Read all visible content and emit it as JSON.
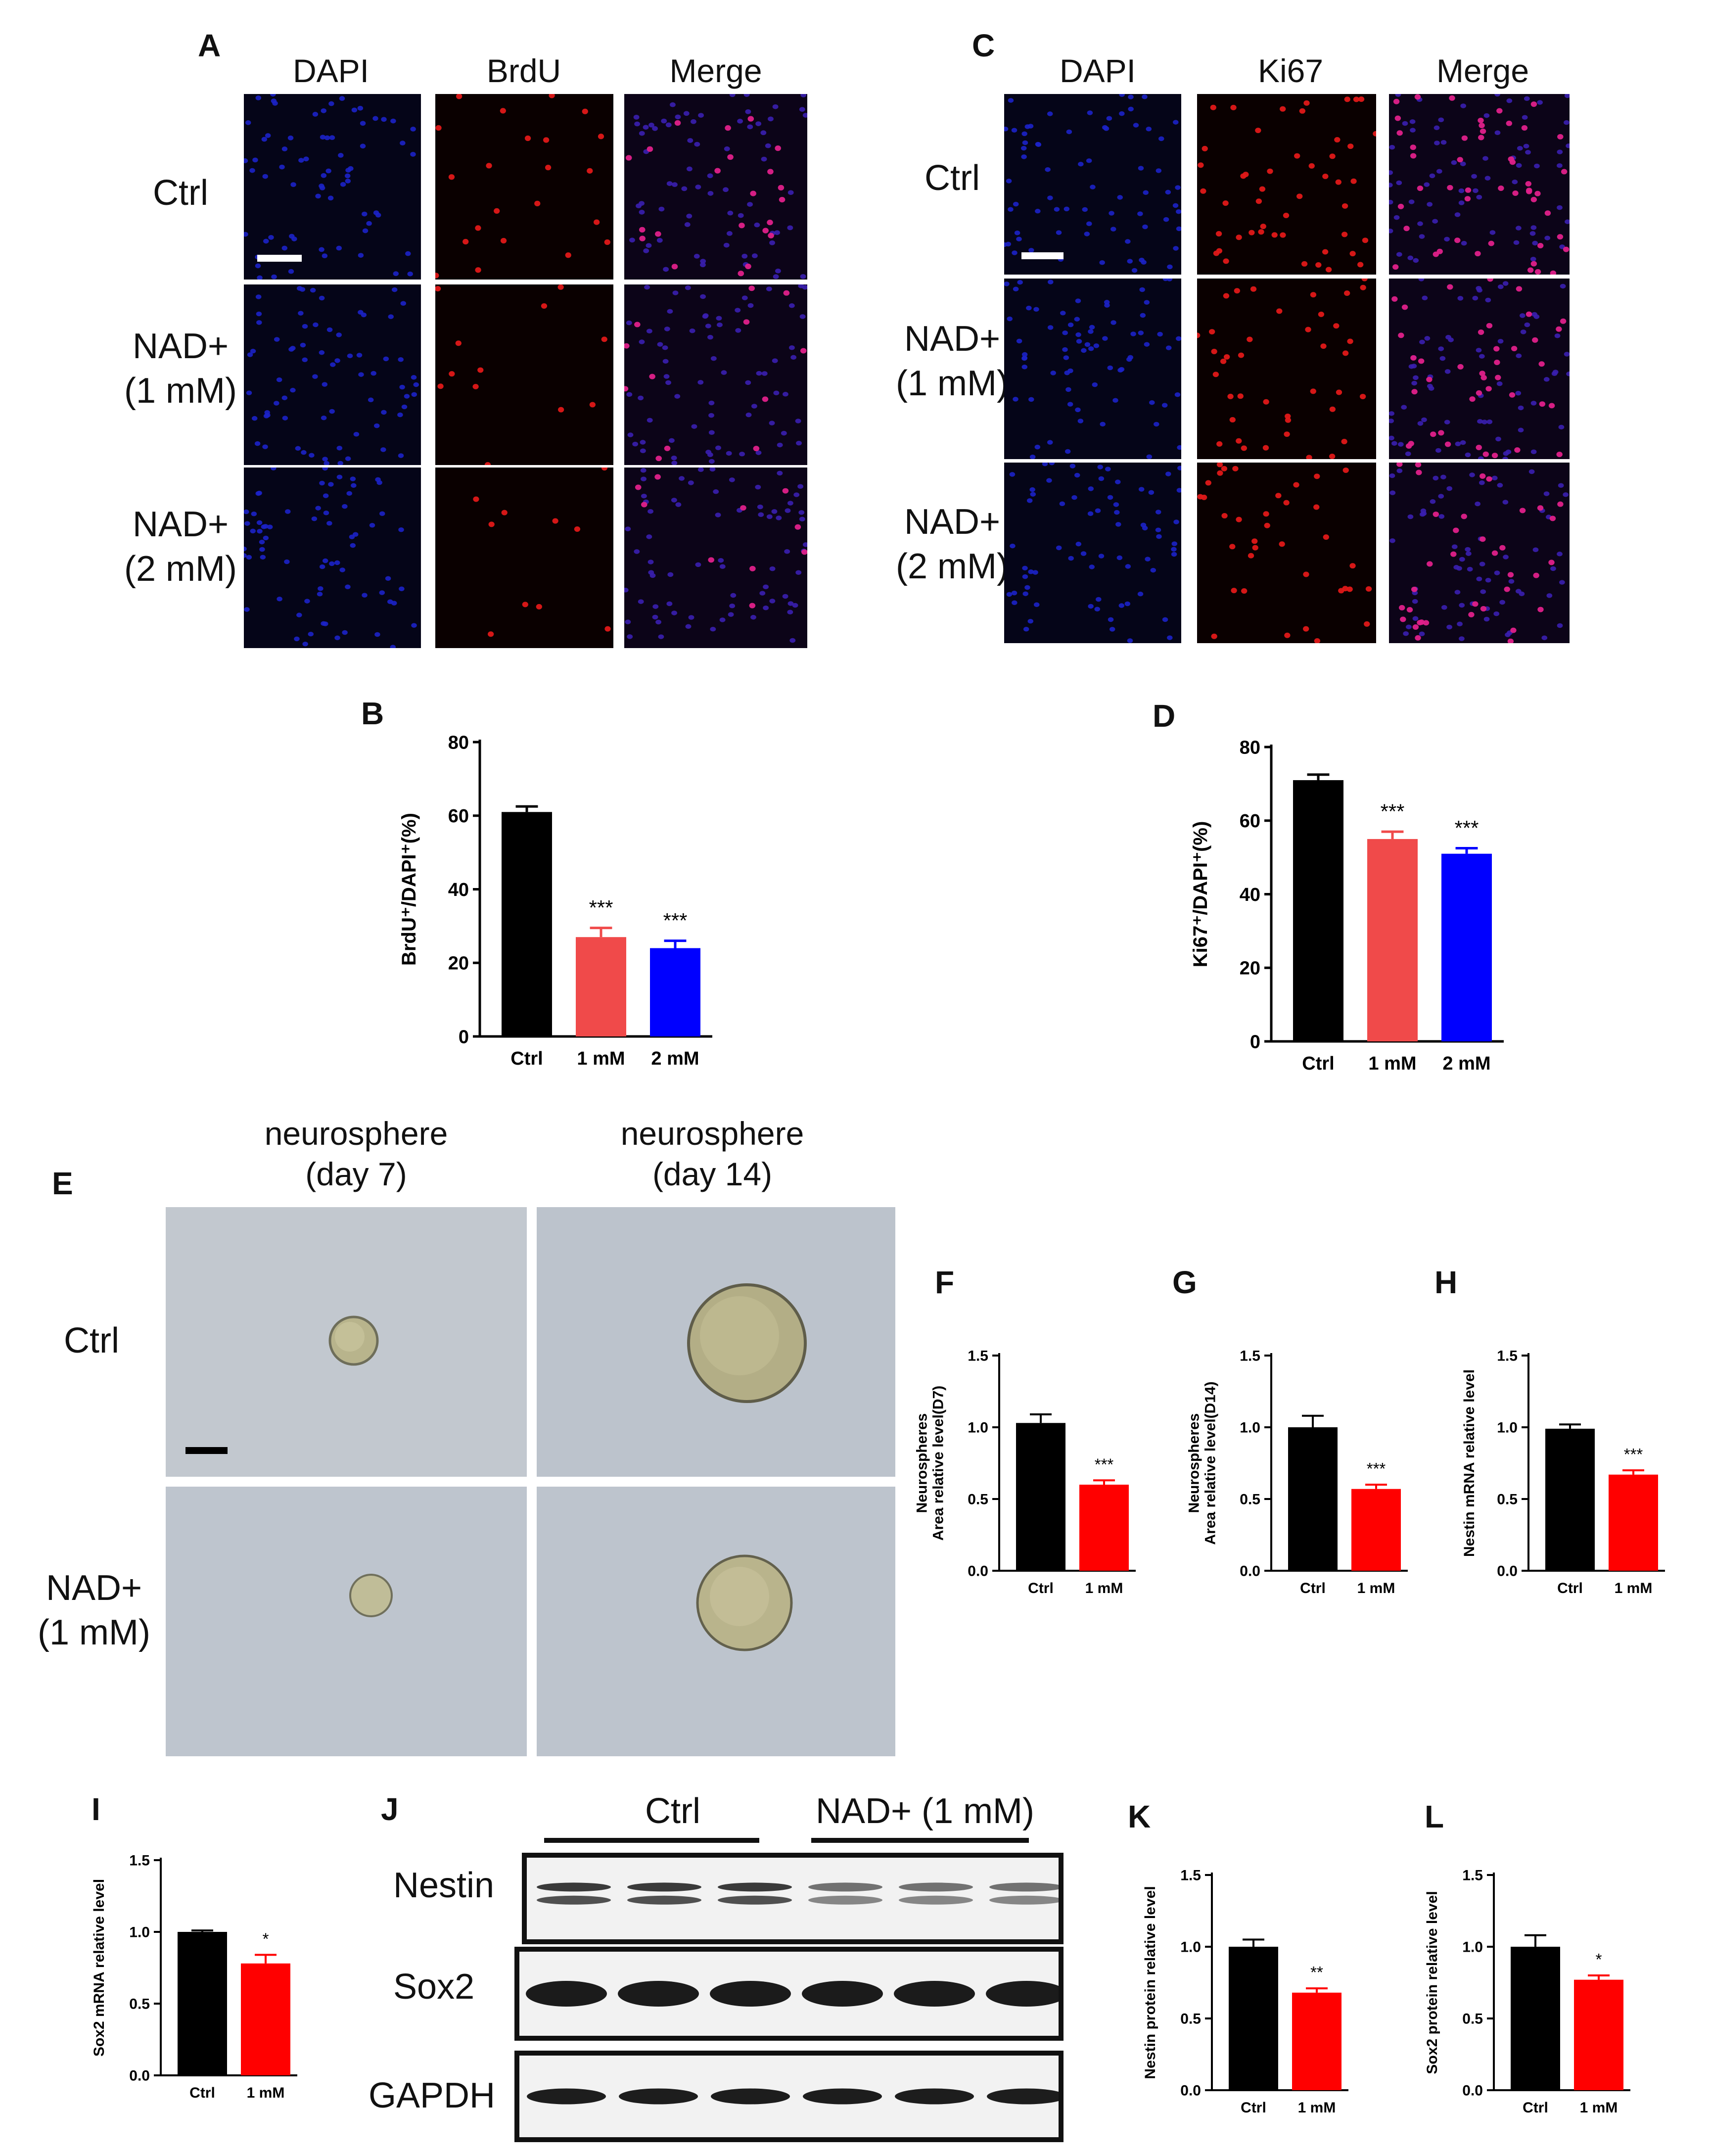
{
  "panels": {
    "A": "A",
    "B": "B",
    "C": "C",
    "D": "D",
    "E": "E",
    "F": "F",
    "G": "G",
    "H": "H",
    "I": "I",
    "J": "J",
    "K": "K",
    "L": "L"
  },
  "panel_a": {
    "columns": [
      "DAPI",
      "BrdU",
      "Merge"
    ],
    "rows": [
      "Ctrl",
      "NAD+\n(1 mM)",
      "NAD+\n(2 mM)"
    ]
  },
  "panel_c": {
    "columns": [
      "DAPI",
      "Ki67",
      "Merge"
    ],
    "rows": [
      "Ctrl",
      "NAD+\n(1 mM)",
      "NAD+\n(2 mM)"
    ]
  },
  "panel_e": {
    "columns": [
      "neurosphere\n(day 7)",
      "neurosphere\n(day 14)"
    ],
    "rows": [
      "Ctrl",
      "NAD+\n(1 mM)"
    ]
  },
  "panel_j": {
    "groups": [
      "Ctrl",
      "NAD+ (1 mM)"
    ],
    "bands": [
      "Nestin",
      "Sox2",
      "GAPDH"
    ]
  },
  "colors": {
    "ctrl": "#000000",
    "red": "#f04a4a",
    "pure_red": "#ff0000",
    "blue": "#0000ff"
  },
  "chart_data": [
    {
      "id": "B",
      "type": "bar",
      "categories": [
        "Ctrl",
        "1 mM",
        "2 mM"
      ],
      "values": [
        61,
        27,
        24
      ],
      "errors": [
        1.5,
        2.5,
        2
      ],
      "significance": [
        "",
        "***",
        "***"
      ],
      "ylabel": "BrdU⁺/DAPI⁺(%)",
      "ylim": [
        0,
        80
      ],
      "yticks": [
        0,
        20,
        40,
        60,
        80
      ],
      "colors": [
        "#000000",
        "#f04a4a",
        "#0000ff"
      ]
    },
    {
      "id": "D",
      "type": "bar",
      "categories": [
        "Ctrl",
        "1 mM",
        "2 mM"
      ],
      "values": [
        71,
        55,
        51
      ],
      "errors": [
        1.5,
        2,
        1.5
      ],
      "significance": [
        "",
        "***",
        "***"
      ],
      "ylabel": "Ki67⁺/DAPI⁺(%)",
      "ylim": [
        0,
        80
      ],
      "yticks": [
        0,
        20,
        40,
        60,
        80
      ],
      "colors": [
        "#000000",
        "#f04a4a",
        "#0000ff"
      ]
    },
    {
      "id": "F",
      "type": "bar",
      "categories": [
        "Ctrl",
        "1 mM"
      ],
      "values": [
        1.03,
        0.6
      ],
      "errors": [
        0.06,
        0.03
      ],
      "significance": [
        "",
        "***"
      ],
      "ylabel": "Neurospheres\nArea relative level(D7)",
      "ylim": [
        0,
        1.5
      ],
      "yticks": [
        0.0,
        0.5,
        1.0,
        1.5
      ],
      "colors": [
        "#000000",
        "#ff0000"
      ]
    },
    {
      "id": "G",
      "type": "bar",
      "categories": [
        "Ctrl",
        "1 mM"
      ],
      "values": [
        1.0,
        0.57
      ],
      "errors": [
        0.08,
        0.03
      ],
      "significance": [
        "",
        "***"
      ],
      "ylabel": "Neurospheres\nArea relative level(D14)",
      "ylim": [
        0,
        1.5
      ],
      "yticks": [
        0.0,
        0.5,
        1.0,
        1.5
      ],
      "colors": [
        "#000000",
        "#ff0000"
      ]
    },
    {
      "id": "H",
      "type": "bar",
      "categories": [
        "Ctrl",
        "1 mM"
      ],
      "values": [
        0.99,
        0.67
      ],
      "errors": [
        0.03,
        0.03
      ],
      "significance": [
        "",
        "***"
      ],
      "ylabel": "Nestin mRNA relative level",
      "ylim": [
        0,
        1.5
      ],
      "yticks": [
        0.0,
        0.5,
        1.0,
        1.5
      ],
      "colors": [
        "#000000",
        "#ff0000"
      ]
    },
    {
      "id": "I",
      "type": "bar",
      "categories": [
        "Ctrl",
        "1 mM"
      ],
      "values": [
        1.0,
        0.78
      ],
      "errors": [
        0.01,
        0.06
      ],
      "significance": [
        "",
        "*"
      ],
      "ylabel": "Sox2 mRNA relative level",
      "ylim": [
        0,
        1.5
      ],
      "yticks": [
        0.0,
        0.5,
        1.0,
        1.5
      ],
      "colors": [
        "#000000",
        "#ff0000"
      ]
    },
    {
      "id": "K",
      "type": "bar",
      "categories": [
        "Ctrl",
        "1 mM"
      ],
      "values": [
        1.0,
        0.68
      ],
      "errors": [
        0.05,
        0.03
      ],
      "significance": [
        "",
        "**"
      ],
      "ylabel": "Nestin protein relative level",
      "ylim": [
        0,
        1.5
      ],
      "yticks": [
        0.0,
        0.5,
        1.0,
        1.5
      ],
      "colors": [
        "#000000",
        "#ff0000"
      ]
    },
    {
      "id": "L",
      "type": "bar",
      "categories": [
        "Ctrl",
        "1 mM"
      ],
      "values": [
        1.0,
        0.77
      ],
      "errors": [
        0.08,
        0.03
      ],
      "significance": [
        "",
        "*"
      ],
      "ylabel": "Sox2 protein relative level",
      "ylim": [
        0,
        1.5
      ],
      "yticks": [
        0.0,
        0.5,
        1.0,
        1.5
      ],
      "colors": [
        "#000000",
        "#ff0000"
      ]
    }
  ]
}
